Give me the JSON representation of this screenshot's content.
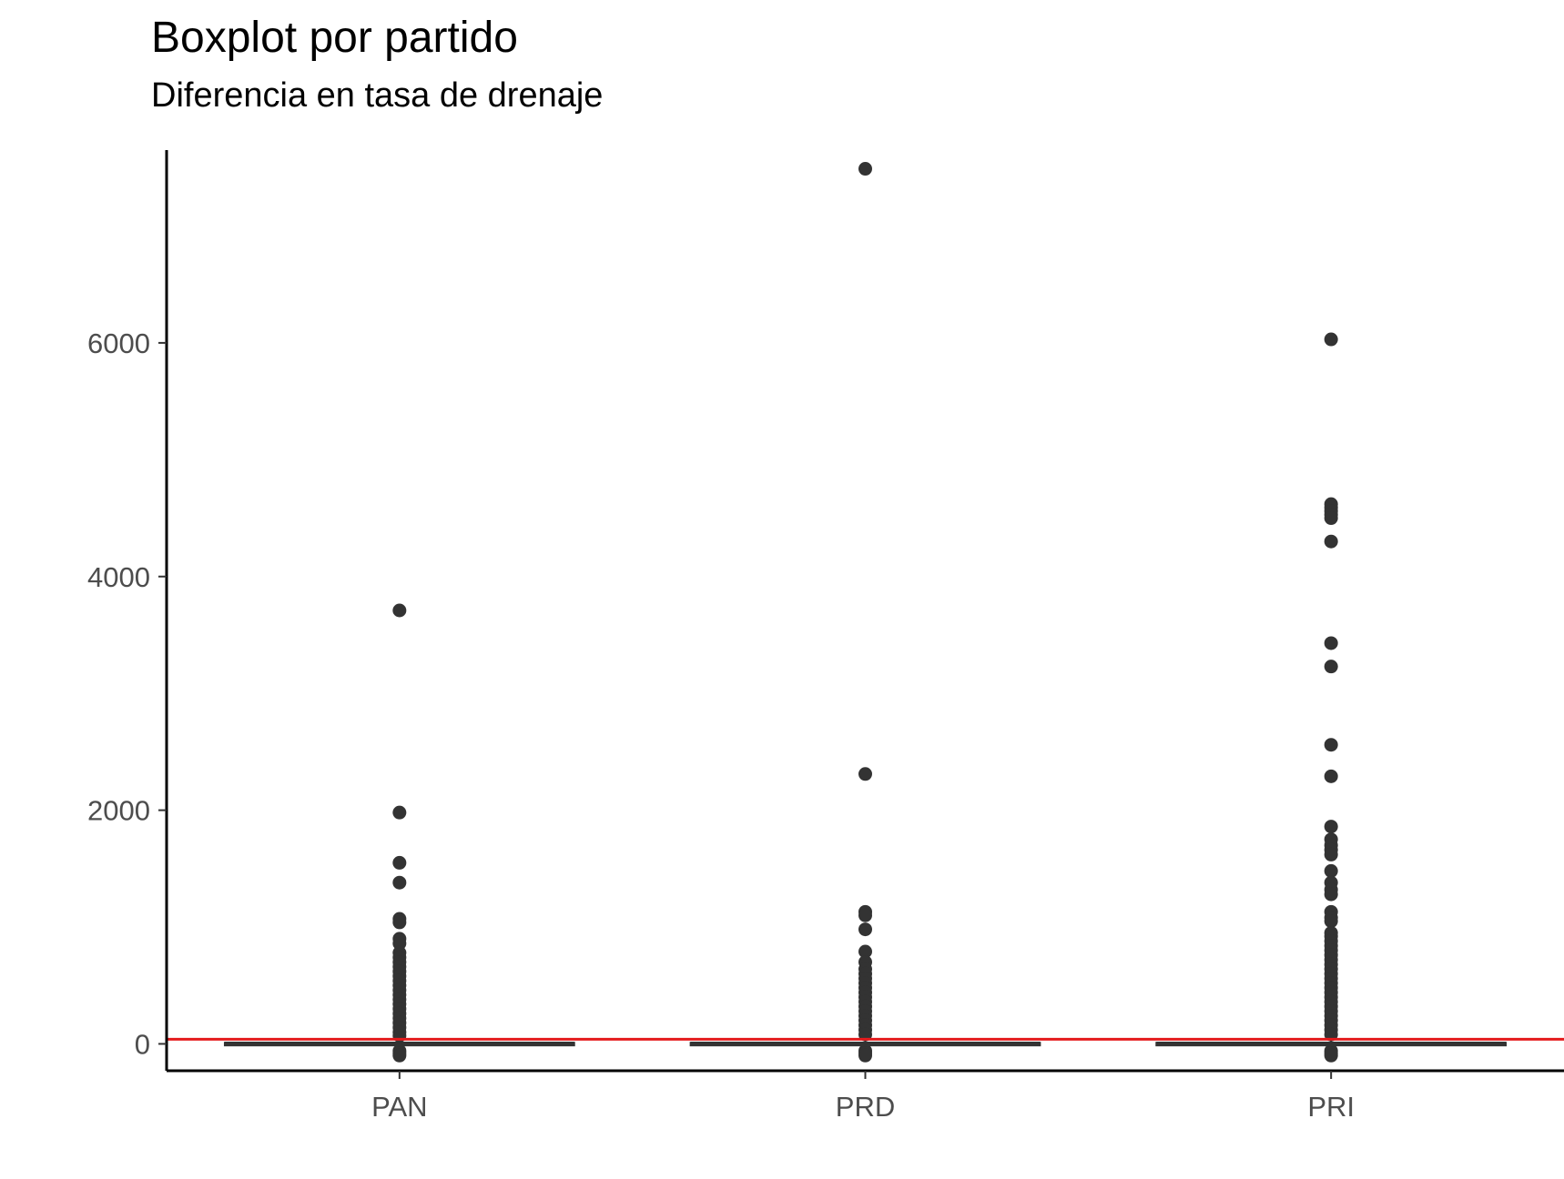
{
  "chart_data": {
    "type": "boxplot",
    "title": "Boxplot por partido",
    "subtitle": "Diferencia en tasa de drenaje",
    "xlabel": "",
    "ylabel": "",
    "categories": [
      "PAN",
      "PRD",
      "PRI"
    ],
    "ylim": [
      -230,
      7650
    ],
    "yticks": [
      0,
      2000,
      4000,
      6000
    ],
    "grid": false,
    "reference_line": {
      "y": 40,
      "color": "#e41a1c"
    },
    "boxes": [
      {
        "category": "PAN",
        "q1": -10,
        "median": 0,
        "q3": 10,
        "whisker_low": -20,
        "whisker_high": 30,
        "outliers": [
          3710,
          1980,
          1550,
          1380,
          1070,
          1040,
          900,
          860,
          780,
          740,
          700,
          660,
          620,
          580,
          540,
          500,
          460,
          420,
          380,
          340,
          300,
          260,
          220,
          180,
          140,
          100,
          70,
          -60,
          -80,
          -100
        ]
      },
      {
        "category": "PRD",
        "q1": -10,
        "median": 0,
        "q3": 10,
        "whisker_low": -20,
        "whisker_high": 30,
        "outliers": [
          7490,
          2310,
          1130,
          1100,
          980,
          790,
          700,
          640,
          600,
          560,
          520,
          480,
          440,
          400,
          360,
          320,
          280,
          240,
          200,
          160,
          120,
          80,
          -60,
          -80,
          -100
        ]
      },
      {
        "category": "PRI",
        "q1": -10,
        "median": 0,
        "q3": 10,
        "whisker_low": -20,
        "whisker_high": 30,
        "outliers": [
          6030,
          4620,
          4590,
          4560,
          4530,
          4500,
          4300,
          3430,
          3230,
          2560,
          2290,
          1860,
          1750,
          1700,
          1660,
          1620,
          1480,
          1380,
          1320,
          1280,
          1130,
          1080,
          1050,
          950,
          920,
          880,
          840,
          800,
          760,
          720,
          680,
          640,
          600,
          560,
          520,
          480,
          440,
          400,
          360,
          320,
          280,
          240,
          200,
          160,
          120,
          80,
          -60,
          -80,
          -100
        ]
      }
    ]
  }
}
